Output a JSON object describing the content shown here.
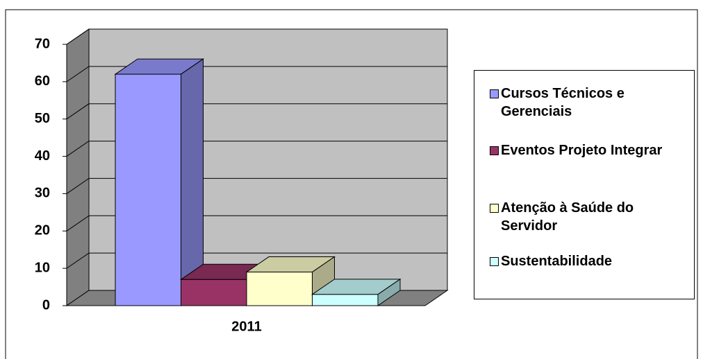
{
  "chart_data": {
    "type": "bar3d",
    "categories": [
      "2011"
    ],
    "series": [
      {
        "name": "Cursos Técnicos e Gerenciais",
        "color": "#9999ff",
        "values": [
          62
        ]
      },
      {
        "name": "Eventos Projeto Integrar",
        "color": "#993366",
        "values": [
          7
        ]
      },
      {
        "name": "Atenção à Saúde do Servidor",
        "color": "#ffffcc",
        "values": [
          9
        ]
      },
      {
        "name": "Sustentabilidade",
        "color": "#ccffff",
        "values": [
          3
        ]
      }
    ],
    "ylim": [
      0,
      70
    ],
    "yticks": [
      0,
      10,
      20,
      30,
      40,
      50,
      60,
      70
    ],
    "grid": true,
    "legend": "right"
  }
}
